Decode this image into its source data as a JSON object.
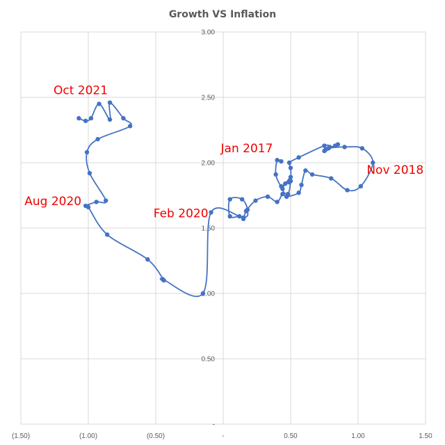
{
  "chart_data": {
    "type": "scatter",
    "title": "Growth VS Inflation",
    "xlabel": "",
    "ylabel": "",
    "xlim": [
      -1.5,
      1.5
    ],
    "ylim": [
      0,
      3
    ],
    "x_ticks": [
      -1.5,
      -1.0,
      -0.5,
      0,
      0.5,
      1.0,
      1.5
    ],
    "x_tick_labels": [
      "(1.50)",
      "(1.00)",
      "(0.50)",
      "-",
      "0.50",
      "1.00",
      "1.50"
    ],
    "y_ticks": [
      0,
      0.5,
      1.0,
      1.5,
      2.0,
      2.5,
      3.0
    ],
    "y_tick_labels": [
      "-",
      "0.50",
      "1.00",
      "1.50",
      "2.00",
      "2.50",
      "3.00"
    ],
    "grid": true,
    "line_style": "smooth",
    "series_color": "#4472c4",
    "annotation_color": "#ee0000",
    "series": [
      {
        "points": [
          [
            0.43,
            2.01
          ],
          [
            0.4,
            2.02
          ],
          [
            0.39,
            1.91
          ],
          [
            0.43,
            1.82
          ],
          [
            0.46,
            1.84
          ],
          [
            0.49,
            1.85
          ],
          [
            0.5,
            1.89
          ],
          [
            0.44,
            1.8
          ],
          [
            0.48,
            1.76
          ],
          [
            0.5,
            1.86
          ],
          [
            0.5,
            1.96
          ],
          [
            0.49,
            2.0
          ],
          [
            0.56,
            2.04
          ],
          [
            0.75,
            2.13
          ],
          [
            0.79,
            2.12
          ],
          [
            0.76,
            2.1
          ],
          [
            0.85,
            2.14
          ],
          [
            0.83,
            2.13
          ],
          [
            0.78,
            2.11
          ],
          [
            0.75,
            2.09
          ],
          [
            0.78,
            2.11
          ],
          [
            0.9,
            2.12
          ],
          [
            1.03,
            2.11
          ],
          [
            1.11,
            2.0
          ],
          [
            1.02,
            1.82
          ],
          [
            0.92,
            1.79
          ],
          [
            0.8,
            1.88
          ],
          [
            0.66,
            1.91
          ],
          [
            0.61,
            1.94
          ],
          [
            0.58,
            1.83
          ],
          [
            0.56,
            1.77
          ],
          [
            0.47,
            1.74
          ],
          [
            0.44,
            1.76
          ],
          [
            0.4,
            1.7
          ],
          [
            0.33,
            1.74
          ],
          [
            0.24,
            1.71
          ],
          [
            0.17,
            1.63
          ],
          [
            0.15,
            1.57
          ],
          [
            0.12,
            1.59
          ],
          [
            0.05,
            1.59
          ],
          [
            0.05,
            1.72
          ],
          [
            0.14,
            1.72
          ],
          [
            0.18,
            1.64
          ],
          [
            0.15,
            1.58
          ],
          [
            -0.09,
            1.62
          ],
          [
            -0.15,
            1.0
          ],
          [
            -0.45,
            1.11
          ],
          [
            -0.44,
            1.1
          ],
          [
            -0.56,
            1.26
          ],
          [
            -0.86,
            1.45
          ],
          [
            -1.0,
            1.66
          ],
          [
            -1.02,
            1.67
          ],
          [
            -0.94,
            1.7
          ],
          [
            -0.87,
            1.71
          ],
          [
            -0.99,
            1.92
          ],
          [
            -1.01,
            2.08
          ],
          [
            -0.93,
            2.18
          ],
          [
            -0.69,
            2.28
          ],
          [
            -0.74,
            2.34
          ],
          [
            -0.84,
            2.46
          ],
          [
            -0.84,
            2.33
          ],
          [
            -0.92,
            2.45
          ],
          [
            -0.98,
            2.34
          ],
          [
            -1.02,
            2.32
          ],
          [
            -1.07,
            2.34
          ]
        ]
      }
    ],
    "annotations": [
      {
        "text": "Jan 2017",
        "x": 0.43,
        "y": 2.01
      },
      {
        "text": "Nov 2018",
        "x": 1.11,
        "y": 2.0
      },
      {
        "text": "Feb 2020",
        "x": -0.09,
        "y": 1.62
      },
      {
        "text": "Aug 2020",
        "x": -1.02,
        "y": 1.67
      },
      {
        "text": "Oct 2021",
        "x": -0.84,
        "y": 2.46
      }
    ]
  }
}
